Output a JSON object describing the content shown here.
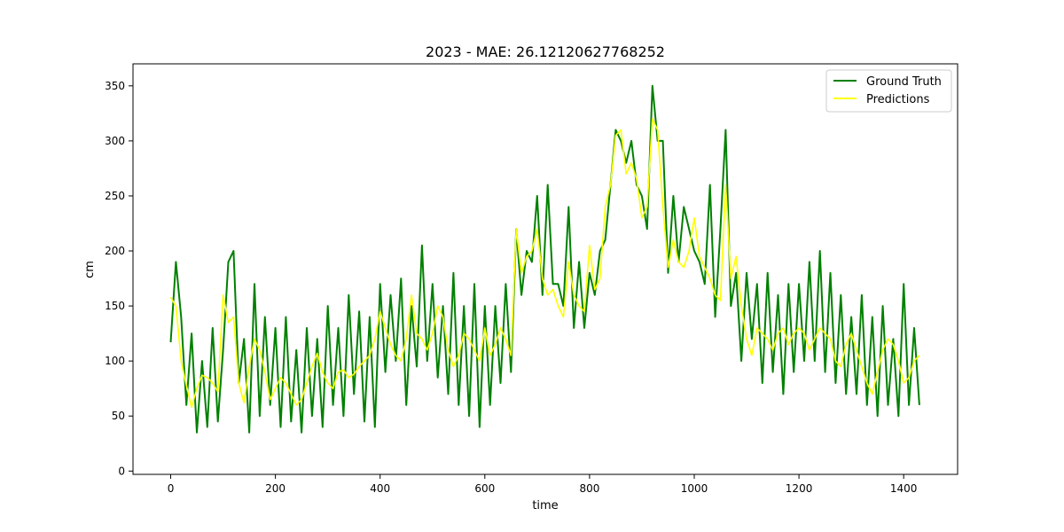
{
  "chart_data": {
    "type": "line",
    "title": "2023 - MAE: 26.12120627768252",
    "xlabel": "time",
    "ylabel": "cm",
    "xlim": [
      -72,
      1503
    ],
    "ylim": [
      -3,
      370
    ],
    "xticks": [
      0,
      200,
      400,
      600,
      800,
      1000,
      1200,
      1400
    ],
    "yticks": [
      0,
      50,
      100,
      150,
      200,
      250,
      300,
      350
    ],
    "grid": false,
    "legend_position": "top-right",
    "series": [
      {
        "name": "Ground Truth",
        "color": "#008000",
        "x": [
          0,
          10,
          20,
          30,
          40,
          50,
          60,
          70,
          80,
          90,
          100,
          110,
          120,
          130,
          140,
          150,
          160,
          170,
          180,
          190,
          200,
          210,
          220,
          230,
          240,
          250,
          260,
          270,
          280,
          290,
          300,
          310,
          320,
          330,
          340,
          350,
          360,
          370,
          380,
          390,
          400,
          410,
          420,
          430,
          440,
          450,
          460,
          470,
          480,
          490,
          500,
          510,
          520,
          530,
          540,
          550,
          560,
          570,
          580,
          590,
          600,
          610,
          620,
          630,
          640,
          650,
          660,
          670,
          680,
          690,
          700,
          710,
          720,
          730,
          740,
          750,
          760,
          770,
          780,
          790,
          800,
          810,
          820,
          830,
          840,
          850,
          860,
          870,
          880,
          890,
          900,
          910,
          920,
          930,
          940,
          950,
          960,
          970,
          980,
          990,
          1000,
          1010,
          1020,
          1030,
          1040,
          1050,
          1060,
          1070,
          1080,
          1090,
          1100,
          1110,
          1120,
          1130,
          1140,
          1150,
          1160,
          1170,
          1180,
          1190,
          1200,
          1210,
          1220,
          1230,
          1240,
          1250,
          1260,
          1270,
          1280,
          1290,
          1300,
          1310,
          1320,
          1330,
          1340,
          1350,
          1360,
          1370,
          1380,
          1390,
          1400,
          1410,
          1420,
          1430
        ],
        "values": [
          117,
          190,
          140,
          60,
          125,
          35,
          100,
          40,
          130,
          45,
          110,
          190,
          200,
          80,
          120,
          35,
          170,
          50,
          140,
          60,
          130,
          40,
          140,
          45,
          110,
          35,
          130,
          50,
          120,
          40,
          150,
          60,
          130,
          50,
          160,
          70,
          145,
          45,
          140,
          40,
          170,
          90,
          160,
          100,
          175,
          60,
          150,
          95,
          205,
          100,
          170,
          85,
          150,
          70,
          180,
          60,
          150,
          50,
          170,
          40,
          150,
          60,
          150,
          80,
          170,
          90,
          220,
          160,
          200,
          190,
          250,
          160,
          260,
          170,
          170,
          150,
          240,
          130,
          190,
          130,
          180,
          160,
          200,
          210,
          260,
          310,
          300,
          280,
          300,
          260,
          250,
          220,
          350,
          300,
          300,
          180,
          250,
          190,
          240,
          220,
          200,
          190,
          170,
          260,
          140,
          220,
          310,
          150,
          180,
          100,
          180,
          120,
          170,
          80,
          180,
          90,
          160,
          70,
          170,
          90,
          170,
          100,
          190,
          100,
          200,
          90,
          180,
          80,
          160,
          70,
          140,
          70,
          160,
          60,
          140,
          50,
          150,
          60,
          120,
          50,
          170,
          60,
          130,
          60
        ]
      },
      {
        "name": "Predictions",
        "color": "#ffff00",
        "x": [
          0,
          10,
          20,
          30,
          40,
          50,
          60,
          70,
          80,
          90,
          100,
          110,
          120,
          130,
          140,
          150,
          160,
          170,
          180,
          190,
          200,
          210,
          220,
          230,
          240,
          250,
          260,
          270,
          280,
          290,
          300,
          310,
          320,
          330,
          340,
          350,
          360,
          370,
          380,
          390,
          400,
          410,
          420,
          430,
          440,
          450,
          460,
          470,
          480,
          490,
          500,
          510,
          520,
          530,
          540,
          550,
          560,
          570,
          580,
          590,
          600,
          610,
          620,
          630,
          640,
          650,
          660,
          670,
          680,
          690,
          700,
          710,
          720,
          730,
          740,
          750,
          760,
          770,
          780,
          790,
          800,
          810,
          820,
          830,
          840,
          850,
          860,
          870,
          880,
          890,
          900,
          910,
          920,
          930,
          940,
          950,
          960,
          970,
          980,
          990,
          1000,
          1010,
          1020,
          1030,
          1040,
          1050,
          1060,
          1070,
          1080,
          1090,
          1100,
          1110,
          1120,
          1130,
          1140,
          1150,
          1160,
          1170,
          1180,
          1190,
          1200,
          1210,
          1220,
          1230,
          1240,
          1250,
          1260,
          1270,
          1280,
          1290,
          1300,
          1310,
          1320,
          1330,
          1340,
          1350,
          1360,
          1370,
          1380,
          1390,
          1400,
          1410,
          1420,
          1430
        ],
        "values": [
          158,
          150,
          100,
          78,
          58,
          75,
          87,
          85,
          80,
          72,
          160,
          135,
          140,
          80,
          62,
          95,
          120,
          110,
          90,
          65,
          75,
          85,
          80,
          70,
          60,
          65,
          80,
          95,
          107,
          90,
          80,
          75,
          90,
          92,
          85,
          88,
          95,
          100,
          105,
          120,
          145,
          130,
          115,
          105,
          100,
          120,
          160,
          125,
          120,
          110,
          125,
          150,
          140,
          110,
          95,
          105,
          125,
          120,
          110,
          100,
          130,
          105,
          115,
          130,
          120,
          105,
          220,
          180,
          195,
          200,
          220,
          175,
          160,
          165,
          150,
          140,
          190,
          160,
          150,
          145,
          205,
          165,
          175,
          240,
          260,
          305,
          310,
          270,
          280,
          265,
          230,
          240,
          320,
          310,
          240,
          185,
          210,
          190,
          185,
          200,
          230,
          195,
          185,
          175,
          160,
          155,
          260,
          175,
          195,
          150,
          120,
          105,
          130,
          125,
          120,
          110,
          125,
          130,
          115,
          125,
          130,
          125,
          110,
          120,
          130,
          125,
          120,
          100,
          95,
          115,
          125,
          110,
          95,
          80,
          70,
          90,
          110,
          120,
          115,
          100,
          80,
          85,
          100,
          105
        ]
      }
    ]
  }
}
